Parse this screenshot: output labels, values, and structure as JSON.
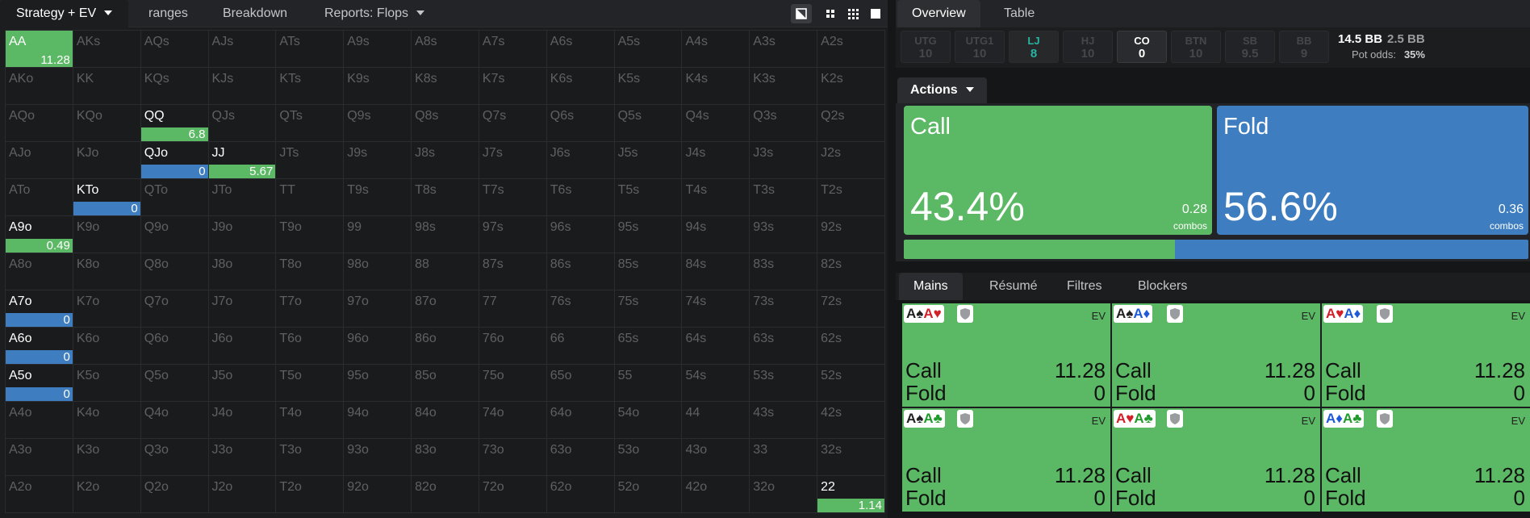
{
  "left_tabs": [
    {
      "label": "Strategy + EV",
      "dropdown": true,
      "active": true
    },
    {
      "label": "ranges",
      "dropdown": false,
      "active": false
    },
    {
      "label": "Breakdown",
      "dropdown": false,
      "active": false
    },
    {
      "label": "Reports: Flops",
      "dropdown": true,
      "active": false
    }
  ],
  "toolbar_icons": [
    "contrast-icon",
    "compact-view-icon",
    "grid-view-icon",
    "square-view-icon"
  ],
  "grid": [
    [
      "AA",
      "AKs",
      "AQs",
      "AJs",
      "ATs",
      "A9s",
      "A8s",
      "A7s",
      "A6s",
      "A5s",
      "A4s",
      "A3s",
      "A2s"
    ],
    [
      "AKo",
      "KK",
      "KQs",
      "KJs",
      "KTs",
      "K9s",
      "K8s",
      "K7s",
      "K6s",
      "K5s",
      "K4s",
      "K3s",
      "K2s"
    ],
    [
      "AQo",
      "KQo",
      "QQ",
      "QJs",
      "QTs",
      "Q9s",
      "Q8s",
      "Q7s",
      "Q6s",
      "Q5s",
      "Q4s",
      "Q3s",
      "Q2s"
    ],
    [
      "AJo",
      "KJo",
      "QJo",
      "JJ",
      "JTs",
      "J9s",
      "J8s",
      "J7s",
      "J6s",
      "J5s",
      "J4s",
      "J3s",
      "J2s"
    ],
    [
      "ATo",
      "KTo",
      "QTo",
      "JTo",
      "TT",
      "T9s",
      "T8s",
      "T7s",
      "T6s",
      "T5s",
      "T4s",
      "T3s",
      "T2s"
    ],
    [
      "A9o",
      "K9o",
      "Q9o",
      "J9o",
      "T9o",
      "99",
      "98s",
      "97s",
      "96s",
      "95s",
      "94s",
      "93s",
      "92s"
    ],
    [
      "A8o",
      "K8o",
      "Q8o",
      "J8o",
      "T8o",
      "98o",
      "88",
      "87s",
      "86s",
      "85s",
      "84s",
      "83s",
      "82s"
    ],
    [
      "A7o",
      "K7o",
      "Q7o",
      "J7o",
      "T7o",
      "97o",
      "87o",
      "77",
      "76s",
      "75s",
      "74s",
      "73s",
      "72s"
    ],
    [
      "A6o",
      "K6o",
      "Q6o",
      "J6o",
      "T6o",
      "96o",
      "86o",
      "76o",
      "66",
      "65s",
      "64s",
      "63s",
      "62s"
    ],
    [
      "A5o",
      "K5o",
      "Q5o",
      "J5o",
      "T5o",
      "95o",
      "85o",
      "75o",
      "65o",
      "55",
      "54s",
      "53s",
      "52s"
    ],
    [
      "A4o",
      "K4o",
      "Q4o",
      "J4o",
      "T4o",
      "94o",
      "84o",
      "74o",
      "64o",
      "54o",
      "44",
      "43s",
      "42s"
    ],
    [
      "A3o",
      "K3o",
      "Q3o",
      "J3o",
      "T3o",
      "93o",
      "83o",
      "73o",
      "63o",
      "53o",
      "43o",
      "33",
      "32s"
    ],
    [
      "A2o",
      "K2o",
      "Q2o",
      "J2o",
      "T2o",
      "92o",
      "82o",
      "72o",
      "62o",
      "52o",
      "42o",
      "32o",
      "22"
    ]
  ],
  "grid_values": {
    "AA": {
      "action": "call",
      "value": "11.28",
      "full": true
    },
    "QQ": {
      "action": "call",
      "value": "6.8"
    },
    "QJo": {
      "action": "fold",
      "value": "0"
    },
    "JJ": {
      "action": "call",
      "value": "5.67"
    },
    "KTo": {
      "action": "fold",
      "value": "0"
    },
    "A9o": {
      "action": "call",
      "value": "0.49"
    },
    "A7o": {
      "action": "fold",
      "value": "0"
    },
    "A6o": {
      "action": "fold",
      "value": "0"
    },
    "A5o": {
      "action": "fold",
      "value": "0"
    },
    "22": {
      "action": "call",
      "value": "1.14"
    }
  },
  "right_tabs": [
    {
      "label": "Overview",
      "active": true
    },
    {
      "label": "Table",
      "active": false
    }
  ],
  "positions": [
    {
      "name": "UTG",
      "stack": "10",
      "state": "inactive"
    },
    {
      "name": "UTG1",
      "stack": "10",
      "state": "inactive"
    },
    {
      "name": "LJ",
      "stack": "8",
      "state": "lj"
    },
    {
      "name": "HJ",
      "stack": "10",
      "state": "inactive"
    },
    {
      "name": "CO",
      "stack": "0",
      "state": "co"
    },
    {
      "name": "BTN",
      "stack": "10",
      "state": "inactive"
    },
    {
      "name": "SB",
      "stack": "9.5",
      "state": "inactive"
    },
    {
      "name": "BB",
      "stack": "9",
      "state": "inactive"
    }
  ],
  "pot": {
    "stack": "14.5 BB",
    "call_amount": "2.5 BB",
    "odds_label": "Pot odds:",
    "odds": "35%"
  },
  "actions_label": "Actions",
  "actions": {
    "call": {
      "name": "Call",
      "pct": "43.4%",
      "combos": "0.28",
      "combos_label": "combos",
      "frequency": 0.434
    },
    "fold": {
      "name": "Fold",
      "pct": "56.6%",
      "combos": "0.36",
      "combos_label": "combos",
      "frequency": 0.566
    }
  },
  "hand_tabs": [
    {
      "label": "Mains",
      "active": true
    },
    {
      "label": "Résumé",
      "active": false
    },
    {
      "label": "Filtres",
      "active": false
    },
    {
      "label": "Blockers",
      "active": false
    }
  ],
  "hands": [
    {
      "cards": [
        {
          "r": "A",
          "s": "♠",
          "c": "black"
        },
        {
          "r": "A",
          "s": "♥",
          "c": "red"
        }
      ],
      "ev_label": "EV",
      "call_label": "Call",
      "call": "11.28",
      "fold_label": "Fold",
      "fold": "0"
    },
    {
      "cards": [
        {
          "r": "A",
          "s": "♠",
          "c": "black"
        },
        {
          "r": "A",
          "s": "♦",
          "c": "blue2"
        }
      ],
      "ev_label": "EV",
      "call_label": "Call",
      "call": "11.28",
      "fold_label": "Fold",
      "fold": "0"
    },
    {
      "cards": [
        {
          "r": "A",
          "s": "♥",
          "c": "red"
        },
        {
          "r": "A",
          "s": "♦",
          "c": "blue2"
        }
      ],
      "ev_label": "EV",
      "call_label": "Call",
      "call": "11.28",
      "fold_label": "Fold",
      "fold": "0"
    },
    {
      "cards": [
        {
          "r": "A",
          "s": "♠",
          "c": "black"
        },
        {
          "r": "A",
          "s": "♣",
          "c": "green2"
        }
      ],
      "ev_label": "EV",
      "call_label": "Call",
      "call": "11.28",
      "fold_label": "Fold",
      "fold": "0"
    },
    {
      "cards": [
        {
          "r": "A",
          "s": "♥",
          "c": "red"
        },
        {
          "r": "A",
          "s": "♣",
          "c": "green2"
        }
      ],
      "ev_label": "EV",
      "call_label": "Call",
      "call": "11.28",
      "fold_label": "Fold",
      "fold": "0"
    },
    {
      "cards": [
        {
          "r": "A",
          "s": "♦",
          "c": "blue2"
        },
        {
          "r": "A",
          "s": "♣",
          "c": "green2"
        }
      ],
      "ev_label": "EV",
      "call_label": "Call",
      "call": "11.28",
      "fold_label": "Fold",
      "fold": "0"
    }
  ],
  "colors": {
    "call": "#5bb864",
    "fold": "#3d7dc0",
    "lj_accent": "#28b5a4"
  }
}
